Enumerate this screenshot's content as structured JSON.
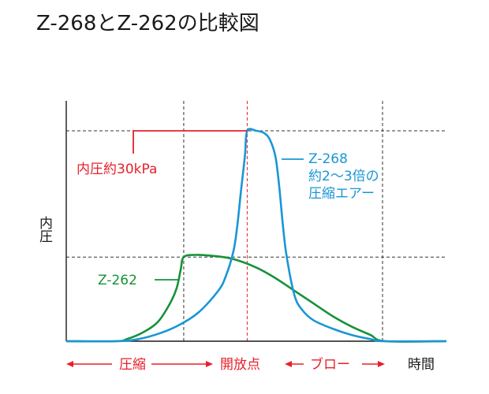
{
  "colors": {
    "z268": "#1a96d6",
    "z262": "#17923a",
    "accent_red": "#e8202a",
    "grid": "#333333",
    "axis": "#1a1a1a"
  },
  "chart_data": {
    "type": "line",
    "title": "Z-268とZ-262の比較図",
    "ylabel": "内圧",
    "xlabel": "時間",
    "x_ticks_shown": false,
    "y_ticks_shown": false,
    "grid": true,
    "x_range_relative": [
      0,
      100
    ],
    "y_range_relative": [
      0,
      100
    ],
    "grid_x": [
      30.9,
      47.6,
      83.2
    ],
    "grid_y": [
      40,
      100
    ],
    "phases": [
      {
        "label": "圧縮",
        "from": 0,
        "to": 30.9
      },
      {
        "label": "開放点",
        "at": 47.6
      },
      {
        "label": "ブロー",
        "from": 47.6,
        "to": 83.2
      }
    ],
    "release_point_x": 47.6,
    "series": [
      {
        "name": "Z-268",
        "color": "#1a96d6",
        "points": [
          [
            0,
            0
          ],
          [
            13,
            0
          ],
          [
            19,
            1
          ],
          [
            25,
            4
          ],
          [
            30,
            8
          ],
          [
            35,
            14
          ],
          [
            40,
            24
          ],
          [
            42,
            31
          ],
          [
            44,
            43
          ],
          [
            45,
            55
          ],
          [
            46,
            72
          ],
          [
            47,
            88
          ],
          [
            47.6,
            100
          ],
          [
            50,
            100
          ],
          [
            52,
            99
          ],
          [
            53.5,
            96
          ],
          [
            55,
            88
          ],
          [
            56,
            74
          ],
          [
            57,
            55
          ],
          [
            58,
            40
          ],
          [
            60,
            22
          ],
          [
            62,
            15
          ],
          [
            65,
            10
          ],
          [
            70,
            6
          ],
          [
            75,
            3
          ],
          [
            80,
            1
          ],
          [
            84,
            0
          ],
          [
            100,
            0
          ]
        ]
      },
      {
        "name": "Z-262",
        "color": "#17923a",
        "points": [
          [
            0,
            0
          ],
          [
            13,
            0
          ],
          [
            16,
            1
          ],
          [
            20,
            4
          ],
          [
            24,
            9
          ],
          [
            27,
            17
          ],
          [
            29,
            25
          ],
          [
            30.1,
            34
          ],
          [
            30.9,
            40
          ],
          [
            34,
            41
          ],
          [
            39,
            40.5
          ],
          [
            44,
            39
          ],
          [
            50,
            35
          ],
          [
            55,
            30
          ],
          [
            60,
            24
          ],
          [
            65,
            18
          ],
          [
            70,
            12
          ],
          [
            75,
            7
          ],
          [
            80,
            3
          ],
          [
            84,
            0
          ],
          [
            100,
            0
          ]
        ]
      }
    ],
    "annotations": [
      {
        "text": "内圧約30kPa",
        "target": "Z-268 peak"
      },
      {
        "text": "Z-268",
        "target": "Z-268"
      },
      {
        "text": "約2～3倍の",
        "target": "Z-268"
      },
      {
        "text": "圧縮エアー",
        "target": "Z-268"
      },
      {
        "text": "Z-262",
        "target": "Z-262"
      }
    ]
  }
}
